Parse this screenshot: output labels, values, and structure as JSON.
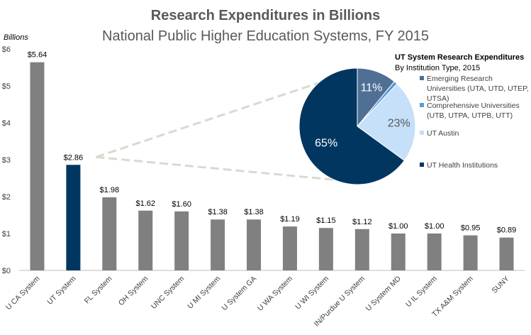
{
  "chart_data": {
    "type": "bar",
    "title": "Research Expenditures in Billions",
    "subtitle": "National Public Higher Education Systems, FY 2015",
    "ylabel": "Billions",
    "ylim": [
      0,
      6
    ],
    "yticks": [
      "$0",
      "$1",
      "$2",
      "$3",
      "$4",
      "$5",
      "$6"
    ],
    "categories": [
      "U CA System",
      "UT System",
      "FL System",
      "OH System",
      "UNC System",
      "U MI System",
      "U System GA",
      "U WA System",
      "U WI System",
      "IN/Purdue U System",
      "U System MD",
      "U IL System",
      "TX A&M System",
      "SUNY"
    ],
    "values": [
      5.64,
      2.86,
      1.98,
      1.62,
      1.6,
      1.38,
      1.38,
      1.19,
      1.15,
      1.12,
      1.0,
      1.0,
      0.95,
      0.89
    ],
    "value_labels": [
      "$5.64",
      "$2.86",
      "$1.98",
      "$1.62",
      "$1.60",
      "$1.38",
      "$1.38",
      "$1.19",
      "$1.15",
      "$1.12",
      "$1.00",
      "$1.00",
      "$0.95",
      "$0.89"
    ],
    "highlight_category": "UT System",
    "bar_color": "#808080",
    "highlight_color": "#003660",
    "inset_pie": {
      "type": "pie",
      "title": "UT System Research Expenditures",
      "subtitle": "By Institution Type, 2015",
      "slices": [
        {
          "label": [
            "Emerging Research",
            "Universities (UTA, UTD, UTEP,",
            "UTSA)"
          ],
          "value": 11,
          "pct_label": "11%",
          "color": "#4F6F95",
          "text_color": "#FFFFFF"
        },
        {
          "label": [
            "Comprehensive Universities",
            "(UTB, UTPA, UTPB, UTT)"
          ],
          "value": 1,
          "pct_label": "",
          "color": "#5B9BD5",
          "text_color": "#FFFFFF"
        },
        {
          "label": [
            "UT Austin"
          ],
          "value": 23,
          "pct_label": "23%",
          "color": "#C5E0F8",
          "text_color": "#595959"
        },
        {
          "label": [
            "UT Health Institutions"
          ],
          "value": 65,
          "pct_label": "65%",
          "color": "#003660",
          "text_color": "#FFFFFF"
        }
      ]
    }
  }
}
